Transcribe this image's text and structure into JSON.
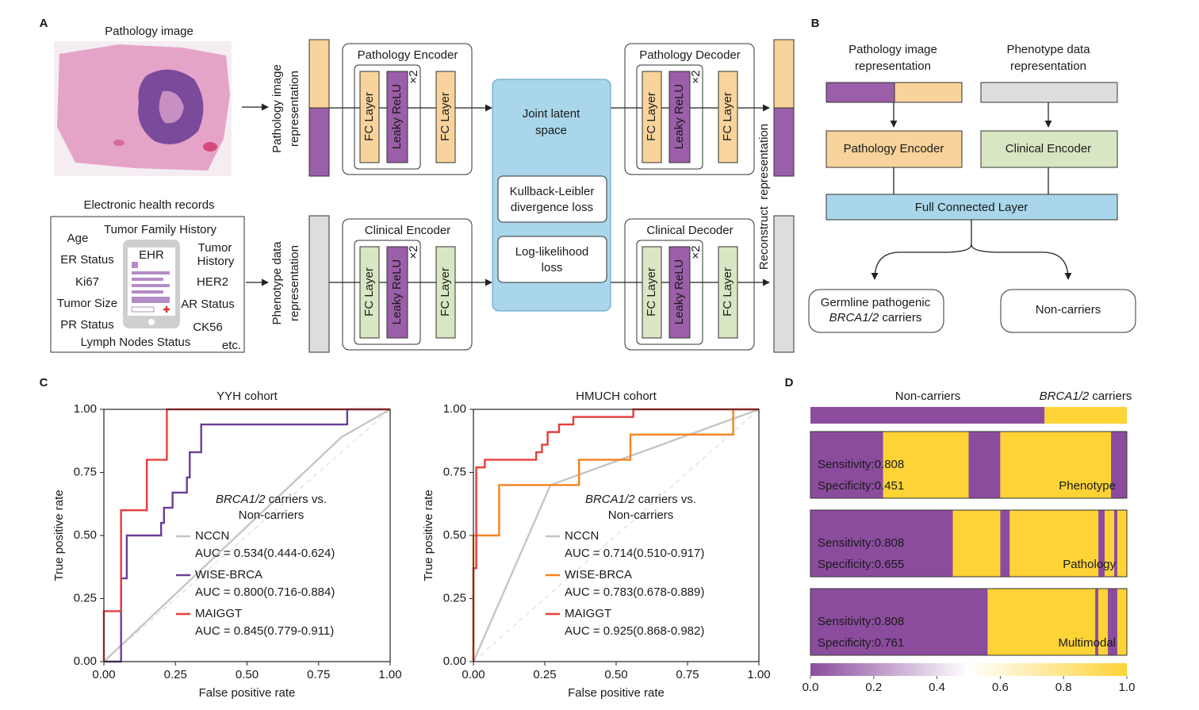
{
  "panel_labels": [
    "A",
    "B",
    "C",
    "D"
  ],
  "panel_a": {
    "image_title": "Pathology image",
    "ehr": {
      "title": "Electronic health records",
      "icon": "EHR",
      "items": [
        "Age",
        "Tumor Family History",
        "ER Status",
        "Tumor",
        "History",
        "Ki67",
        "HER2",
        "Tumor Size",
        "AR Status",
        "PR Status",
        "CK56",
        "Lymph Nodes Status",
        "etc."
      ]
    },
    "input_labels": [
      [
        "Pathology image",
        "representation"
      ],
      [
        "Phenotype data",
        "representation"
      ]
    ],
    "encoders": [
      {
        "title": "Pathology Encoder",
        "layers": [
          "FC Layer",
          "Leaky ReLU",
          "FC Layer"
        ],
        "repeat": "×2",
        "fc_color": "#f8d39b"
      },
      {
        "title": "Pathology Decoder",
        "layers": [
          "FC Layer",
          "Leaky ReLU",
          "FC Layer"
        ],
        "repeat": "×2",
        "fc_color": "#f8d39b"
      },
      {
        "title": "Clinical Encoder",
        "layers": [
          "FC Layer",
          "Leaky ReLU",
          "FC Layer"
        ],
        "repeat": "×2",
        "fc_color": "#d8e6c3"
      },
      {
        "title": "Clinical Decoder",
        "layers": [
          "FC Layer",
          "Leaky ReLU",
          "FC Layer"
        ],
        "repeat": "×2",
        "fc_color": "#d8e6c3"
      }
    ],
    "latent": {
      "title": [
        "Joint latent",
        "space"
      ],
      "losses": [
        [
          "Kullback-Leibler",
          "divergence loss"
        ],
        [
          "Log-likelihood",
          "loss"
        ]
      ]
    },
    "output_label": "Reconstruct  representation"
  },
  "panel_b": {
    "inputs": [
      [
        "Pathology image",
        "representation"
      ],
      [
        "Phenotype data",
        "representation"
      ]
    ],
    "encoders": [
      "Pathology Encoder",
      "Clinical Encoder"
    ],
    "fusion": "Full Connected Layer",
    "outcomes": [
      {
        "line1": "Germline pathogenic",
        "line2_italic": "BRCA1/2",
        "line2": " carriers"
      },
      {
        "line1": "Non-carriers"
      }
    ]
  },
  "chart_data": [
    {
      "type": "line",
      "title": "YYH cohort",
      "x_label": "False positive rate",
      "y_label": "True positive rate",
      "legend_title_italic": "BRCA1/2",
      "legend_title_rest": " carriers vs.",
      "legend_title_line2": "Non-carriers",
      "xlim": [
        0,
        1
      ],
      "ylim": [
        0,
        1
      ],
      "xticks": [
        {
          "value": 0,
          "label": "0.00"
        },
        {
          "value": 0.25,
          "label": "0.25"
        },
        {
          "value": 0.5,
          "label": "0.50"
        },
        {
          "value": 0.75,
          "label": "0.75"
        },
        {
          "value": 1,
          "label": "1.00"
        }
      ],
      "yticks": [
        {
          "value": 0,
          "label": "0.00"
        },
        {
          "value": 0.25,
          "label": "0.25"
        },
        {
          "value": 0.5,
          "label": "0.50"
        },
        {
          "value": 0.75,
          "label": "0.75"
        },
        {
          "value": 1,
          "label": "1.00"
        }
      ],
      "series": [
        {
          "name": "NCCN",
          "auc_label": "AUC = 0.534(0.444-0.624)",
          "color": "#c6c6c6",
          "x": [
            0,
            0.83,
            1
          ],
          "values": [
            0,
            0.89,
            1
          ]
        },
        {
          "name": "WISE-BRCA",
          "auc_label": "AUC = 0.800(0.716-0.884)",
          "color": "#6a3d9a",
          "x": [
            0,
            0.06,
            0.06,
            0.08,
            0.08,
            0.2,
            0.2,
            0.21,
            0.21,
            0.24,
            0.24,
            0.29,
            0.29,
            0.3,
            0.3,
            0.34,
            0.34,
            0.85,
            0.85,
            1
          ],
          "values": [
            0,
            0,
            0.33,
            0.33,
            0.5,
            0.5,
            0.55,
            0.55,
            0.61,
            0.61,
            0.67,
            0.67,
            0.73,
            0.73,
            0.83,
            0.83,
            0.94,
            0.94,
            1,
            1
          ]
        },
        {
          "name": "MAIGGT",
          "auc_label": "AUC = 0.845(0.779-0.911)",
          "color": "#e63e3a",
          "x": [
            0,
            0,
            0.06,
            0.06,
            0.15,
            0.15,
            0.22,
            0.22,
            1
          ],
          "values": [
            0,
            0.2,
            0.2,
            0.6,
            0.6,
            0.8,
            0.8,
            1,
            1
          ]
        }
      ]
    },
    {
      "type": "line",
      "title": "HMUCH cohort",
      "x_label": "False positive rate",
      "y_label": "True positive rate",
      "legend_title_italic": "BRCA1/2",
      "legend_title_rest": " carriers vs.",
      "legend_title_line2": "Non-carriers",
      "xlim": [
        0,
        1
      ],
      "ylim": [
        0,
        1
      ],
      "xticks": [
        {
          "value": 0,
          "label": "0.00"
        },
        {
          "value": 0.25,
          "label": "0.25"
        },
        {
          "value": 0.5,
          "label": "0.50"
        },
        {
          "value": 0.75,
          "label": "0.75"
        },
        {
          "value": 1,
          "label": "1.00"
        }
      ],
      "yticks": [
        {
          "value": 0,
          "label": "0.00"
        },
        {
          "value": 0.25,
          "label": "0.25"
        },
        {
          "value": 0.5,
          "label": "0.50"
        },
        {
          "value": 0.75,
          "label": "0.75"
        },
        {
          "value": 1,
          "label": "1.00"
        }
      ],
      "series": [
        {
          "name": "NCCN",
          "auc_label": "AUC = 0.714(0.510-0.917)",
          "color": "#c6c6c6",
          "x": [
            0,
            0.27,
            1
          ],
          "values": [
            0,
            0.7,
            1
          ]
        },
        {
          "name": "WISE-BRCA",
          "auc_label": "AUC = 0.783(0.678-0.889)",
          "color": "#f5831f",
          "x": [
            0,
            0,
            0.09,
            0.09,
            0.37,
            0.37,
            0.55,
            0.55,
            0.91,
            0.91,
            1
          ],
          "values": [
            0,
            0.5,
            0.5,
            0.7,
            0.7,
            0.8,
            0.8,
            0.9,
            0.9,
            1,
            1
          ]
        },
        {
          "name": "MAIGGT",
          "auc_label": "AUC = 0.925(0.868-0.982)",
          "color": "#e63e3a",
          "x": [
            0,
            0,
            0.01,
            0.01,
            0.04,
            0.04,
            0.22,
            0.22,
            0.24,
            0.24,
            0.26,
            0.26,
            0.3,
            0.3,
            0.35,
            0.35,
            0.56,
            0.56,
            1
          ],
          "values": [
            0,
            0.37,
            0.37,
            0.77,
            0.77,
            0.8,
            0.8,
            0.83,
            0.83,
            0.86,
            0.86,
            0.91,
            0.91,
            0.94,
            0.94,
            0.97,
            0.97,
            1,
            1
          ]
        }
      ]
    },
    {
      "type": "strip",
      "xlim": [
        0,
        1
      ],
      "truth": {
        "label_left": "Non-carriers",
        "label_right_italic": "BRCA1/2",
        "label_right": " carriers",
        "segments": [
          {
            "start": 0,
            "end": 0.74,
            "color": "#8b4c9e"
          },
          {
            "start": 0.74,
            "end": 1,
            "color": "#fdd336"
          }
        ]
      },
      "rows": [
        {
          "name": "Phenotype",
          "sensitivity": "Sensitivity:0.808",
          "specificity": "Specificity:0.451",
          "segments": [
            {
              "start": 0,
              "end": 0.23,
              "color": "#8b4c9e"
            },
            {
              "start": 0.23,
              "end": 0.5,
              "color": "#fdd336"
            },
            {
              "start": 0.5,
              "end": 0.6,
              "color": "#8b4c9e"
            },
            {
              "start": 0.6,
              "end": 0.95,
              "color": "#fdd336"
            },
            {
              "start": 0.95,
              "end": 1,
              "color": "#8b4c9e"
            }
          ]
        },
        {
          "name": "Pathology",
          "sensitivity": "Sensitivity:0.808",
          "specificity": "Specificity:0.655",
          "segments": [
            {
              "start": 0,
              "end": 0.45,
              "color": "#8b4c9e"
            },
            {
              "start": 0.45,
              "end": 0.6,
              "color": "#fdd336"
            },
            {
              "start": 0.6,
              "end": 0.63,
              "color": "#8b4c9e"
            },
            {
              "start": 0.63,
              "end": 0.91,
              "color": "#fdd336"
            },
            {
              "start": 0.91,
              "end": 0.93,
              "color": "#8b4c9e"
            },
            {
              "start": 0.93,
              "end": 0.96,
              "color": "#fdd336"
            },
            {
              "start": 0.96,
              "end": 0.97,
              "color": "#8b4c9e"
            },
            {
              "start": 0.97,
              "end": 1,
              "color": "#fdd336"
            }
          ]
        },
        {
          "name": "Multimodal",
          "sensitivity": "Sensitivity:0.808",
          "specificity": "Specificity:0.761",
          "segments": [
            {
              "start": 0,
              "end": 0.56,
              "color": "#8b4c9e"
            },
            {
              "start": 0.56,
              "end": 0.9,
              "color": "#fdd336"
            },
            {
              "start": 0.9,
              "end": 0.91,
              "color": "#8b4c9e"
            },
            {
              "start": 0.91,
              "end": 0.94,
              "color": "#fdd336"
            },
            {
              "start": 0.94,
              "end": 0.97,
              "color": "#8b4c9e"
            },
            {
              "start": 0.97,
              "end": 1,
              "color": "#fdd336"
            }
          ]
        }
      ],
      "colorbar": {
        "colors": [
          "#8b4c9e",
          "#ffffff",
          "#fdd336"
        ],
        "ticks": [
          {
            "value": 0,
            "label": "0.0"
          },
          {
            "value": 0.2,
            "label": "0.2"
          },
          {
            "value": 0.4,
            "label": "0.4"
          },
          {
            "value": 0.6,
            "label": "0.6"
          },
          {
            "value": 0.8,
            "label": "0.8"
          },
          {
            "value": 1,
            "label": "1.0"
          }
        ]
      }
    }
  ]
}
